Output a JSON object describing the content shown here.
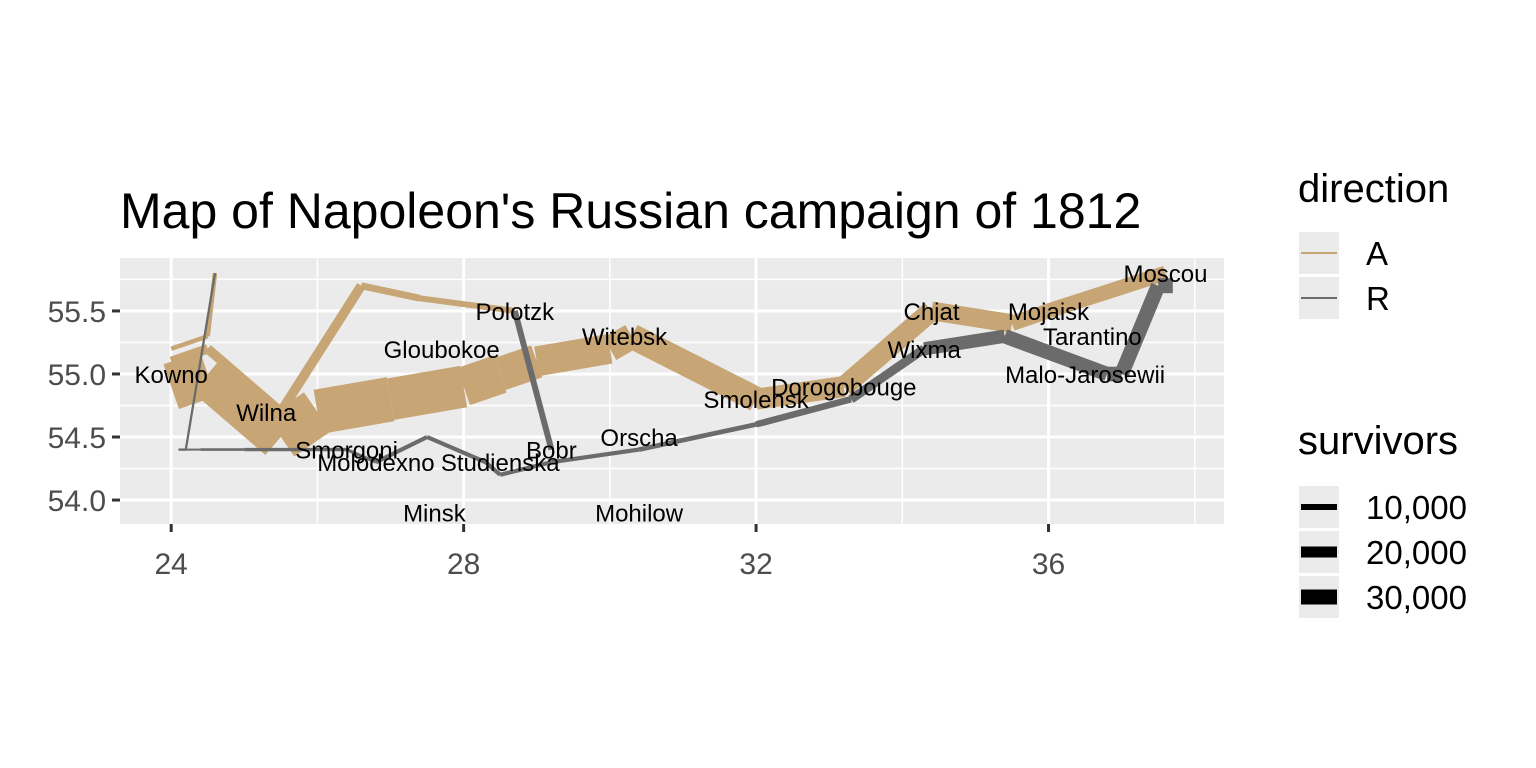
{
  "chart_data": {
    "type": "line",
    "title": "Map of Napoleon's Russian campaign of 1812",
    "xlabel": "",
    "ylabel": "",
    "xlim": [
      23.3,
      38.4
    ],
    "ylim": [
      53.81,
      55.92
    ],
    "x_ticks": [
      24,
      28,
      32,
      36
    ],
    "y_ticks": [
      54.0,
      54.5,
      55.0,
      55.5
    ],
    "x_tick_labels": [
      "24",
      "28",
      "32",
      "36"
    ],
    "y_tick_labels": [
      "54.0",
      "54.5",
      "55.0",
      "55.5"
    ],
    "grid": true,
    "legend_position": "right",
    "colors": {
      "A": "#c8a574",
      "R": "#6b6b6b",
      "panel": "#ebebeb",
      "grid": "#ffffff"
    },
    "legend": {
      "direction": {
        "title": "direction",
        "entries": [
          {
            "key": "A",
            "label": "A"
          },
          {
            "key": "R",
            "label": "R"
          }
        ]
      },
      "survivors": {
        "title": "survivors",
        "entries": [
          {
            "value": 10000,
            "label": "10,000"
          },
          {
            "value": 20000,
            "label": "20,000"
          },
          {
            "value": 30000,
            "label": "30,000"
          }
        ]
      }
    },
    "series": [
      {
        "name": "A",
        "group": 1,
        "direction": "A",
        "points": [
          [
            24.0,
            54.9,
            340000
          ],
          [
            24.5,
            55.0,
            340000
          ],
          [
            25.5,
            54.5,
            340000
          ],
          [
            26.0,
            54.7,
            320000
          ],
          [
            27.0,
            54.8,
            300000
          ],
          [
            28.0,
            54.9,
            280000
          ],
          [
            28.5,
            55.0,
            240000
          ],
          [
            29.0,
            55.1,
            210000
          ],
          [
            30.0,
            55.2,
            180000
          ],
          [
            30.3,
            55.3,
            175000
          ],
          [
            32.0,
            54.8,
            145000
          ],
          [
            33.2,
            54.9,
            140000
          ],
          [
            34.4,
            55.5,
            127100
          ],
          [
            35.5,
            55.4,
            100000
          ],
          [
            36.0,
            55.5,
            100000
          ],
          [
            37.6,
            55.8,
            100000
          ]
        ]
      },
      {
        "name": "R",
        "group": 1,
        "direction": "R",
        "points": [
          [
            37.7,
            55.7,
            100000
          ],
          [
            37.5,
            55.7,
            98000
          ],
          [
            37.0,
            55.0,
            97000
          ],
          [
            36.8,
            55.0,
            96000
          ],
          [
            35.4,
            55.3,
            87000
          ],
          [
            34.3,
            55.2,
            55000
          ],
          [
            33.3,
            54.8,
            37000
          ],
          [
            32.0,
            54.6,
            24000
          ],
          [
            30.4,
            54.4,
            20000
          ],
          [
            29.2,
            54.3,
            20000
          ],
          [
            28.5,
            54.2,
            20000
          ],
          [
            28.3,
            54.3,
            20000
          ],
          [
            27.5,
            54.5,
            20000
          ],
          [
            26.8,
            54.3,
            12000
          ],
          [
            26.4,
            54.4,
            14000
          ],
          [
            25.0,
            54.4,
            8000
          ],
          [
            24.4,
            54.4,
            4000
          ],
          [
            24.2,
            54.4,
            4000
          ],
          [
            24.1,
            54.4,
            4000
          ]
        ]
      },
      {
        "name": "A",
        "group": 2,
        "direction": "A",
        "points": [
          [
            24.0,
            55.1,
            60000
          ],
          [
            24.5,
            55.2,
            60000
          ],
          [
            25.5,
            54.7,
            60000
          ],
          [
            26.6,
            55.7,
            40000
          ],
          [
            27.4,
            55.6,
            33000
          ],
          [
            28.7,
            55.5,
            33000
          ]
        ]
      },
      {
        "name": "R",
        "group": 2,
        "direction": "R",
        "points": [
          [
            28.7,
            55.5,
            33000
          ],
          [
            29.2,
            54.4,
            30000
          ]
        ]
      },
      {
        "name": "A",
        "group": 3,
        "direction": "A",
        "points": [
          [
            24.0,
            55.2,
            22000
          ],
          [
            24.5,
            55.3,
            22000
          ],
          [
            24.6,
            55.8,
            6000
          ]
        ]
      },
      {
        "name": "R",
        "group": 3,
        "direction": "R",
        "points": [
          [
            24.6,
            55.8,
            6000
          ],
          [
            24.2,
            54.4,
            6000
          ],
          [
            24.1,
            54.4,
            6000
          ]
        ]
      }
    ],
    "annotations": [
      {
        "label": "Kowno",
        "lon": 24.0,
        "lat": 55.0
      },
      {
        "label": "Wilna",
        "lon": 25.3,
        "lat": 54.7
      },
      {
        "label": "Smorgoni",
        "lon": 26.4,
        "lat": 54.4
      },
      {
        "label": "Molodexno",
        "lon": 26.8,
        "lat": 54.3
      },
      {
        "label": "Gloubokoe",
        "lon": 27.7,
        "lat": 55.2
      },
      {
        "label": "Minsk",
        "lon": 27.6,
        "lat": 53.9
      },
      {
        "label": "Studienska",
        "lon": 28.5,
        "lat": 54.3
      },
      {
        "label": "Polotzk",
        "lon": 28.7,
        "lat": 55.5
      },
      {
        "label": "Bobr",
        "lon": 29.2,
        "lat": 54.4
      },
      {
        "label": "Witebsk",
        "lon": 30.2,
        "lat": 55.3
      },
      {
        "label": "Orscha",
        "lon": 30.4,
        "lat": 54.5
      },
      {
        "label": "Mohilow",
        "lon": 30.4,
        "lat": 53.9
      },
      {
        "label": "Smolensk",
        "lon": 32.0,
        "lat": 54.8
      },
      {
        "label": "Dorogobouge",
        "lon": 33.2,
        "lat": 54.9
      },
      {
        "label": "Wixma",
        "lon": 34.3,
        "lat": 55.2
      },
      {
        "label": "Chjat",
        "lon": 34.4,
        "lat": 55.5
      },
      {
        "label": "Mojaisk",
        "lon": 36.0,
        "lat": 55.5
      },
      {
        "label": "Moscou",
        "lon": 37.6,
        "lat": 55.8
      },
      {
        "label": "Tarantino",
        "lon": 36.6,
        "lat": 55.3
      },
      {
        "label": "Malo-Jarosewii",
        "lon": 36.5,
        "lat": 55.0
      }
    ]
  }
}
